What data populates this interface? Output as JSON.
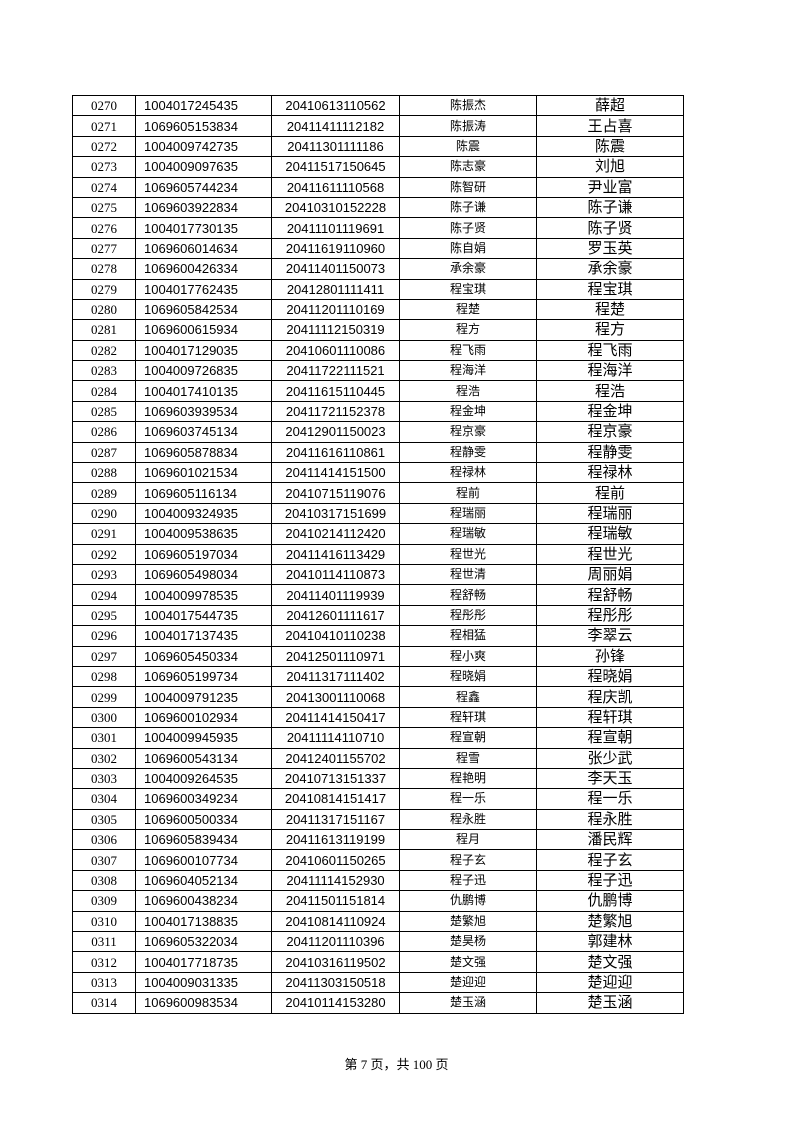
{
  "table": {
    "rows": [
      [
        "0270",
        "1004017245435",
        "20410613110562",
        "陈振杰",
        "薛超"
      ],
      [
        "0271",
        "1069605153834",
        "20411411112182",
        "陈振涛",
        "王占喜"
      ],
      [
        "0272",
        "1004009742735",
        "20411301111186",
        "陈震",
        "陈震"
      ],
      [
        "0273",
        "1004009097635",
        "20411517150645",
        "陈志豪",
        "刘旭"
      ],
      [
        "0274",
        "1069605744234",
        "20411611110568",
        "陈智研",
        "尹业富"
      ],
      [
        "0275",
        "1069603922834",
        "20410310152228",
        "陈子谦",
        "陈子谦"
      ],
      [
        "0276",
        "1004017730135",
        "20411101119691",
        "陈子贤",
        "陈子贤"
      ],
      [
        "0277",
        "1069606014634",
        "20411619110960",
        "陈自娟",
        "罗玉英"
      ],
      [
        "0278",
        "1069600426334",
        "20411401150073",
        "承余豪",
        "承余豪"
      ],
      [
        "0279",
        "1004017762435",
        "20412801111411",
        "程宝琪",
        "程宝琪"
      ],
      [
        "0280",
        "1069605842534",
        "20411201110169",
        "程楚",
        "程楚"
      ],
      [
        "0281",
        "1069600615934",
        "20411112150319",
        "程方",
        "程方"
      ],
      [
        "0282",
        "1004017129035",
        "20410601110086",
        "程飞雨",
        "程飞雨"
      ],
      [
        "0283",
        "1004009726835",
        "20411722111521",
        "程海洋",
        "程海洋"
      ],
      [
        "0284",
        "1004017410135",
        "20411615110445",
        "程浩",
        "程浩"
      ],
      [
        "0285",
        "1069603939534",
        "20411721152378",
        "程金坤",
        "程金坤"
      ],
      [
        "0286",
        "1069603745134",
        "20412901150023",
        "程京豪",
        "程京豪"
      ],
      [
        "0287",
        "1069605878834",
        "20411616110861",
        "程静雯",
        "程静雯"
      ],
      [
        "0288",
        "1069601021534",
        "20411414151500",
        "程禄林",
        "程禄林"
      ],
      [
        "0289",
        "1069605116134",
        "20410715119076",
        "程前",
        "程前"
      ],
      [
        "0290",
        "1004009324935",
        "20410317151699",
        "程瑞丽",
        "程瑞丽"
      ],
      [
        "0291",
        "1004009538635",
        "20410214112420",
        "程瑞敏",
        "程瑞敏"
      ],
      [
        "0292",
        "1069605197034",
        "20411416113429",
        "程世光",
        "程世光"
      ],
      [
        "0293",
        "1069605498034",
        "20410114110873",
        "程世清",
        "周丽娟"
      ],
      [
        "0294",
        "1004009978535",
        "20411401119939",
        "程舒畅",
        "程舒畅"
      ],
      [
        "0295",
        "1004017544735",
        "20412601111617",
        "程彤彤",
        "程彤彤"
      ],
      [
        "0296",
        "1004017137435",
        "20410410110238",
        "程相猛",
        "李翠云"
      ],
      [
        "0297",
        "1069605450334",
        "20412501110971",
        "程小爽",
        "孙锋"
      ],
      [
        "0298",
        "1069605199734",
        "20411317111402",
        "程晓娟",
        "程晓娟"
      ],
      [
        "0299",
        "1004009791235",
        "20413001110068",
        "程鑫",
        "程庆凯"
      ],
      [
        "0300",
        "1069600102934",
        "20411414150417",
        "程轩琪",
        "程轩琪"
      ],
      [
        "0301",
        "1004009945935",
        "20411114110710",
        "程宣朝",
        "程宣朝"
      ],
      [
        "0302",
        "1069600543134",
        "20412401155702",
        "程雪",
        "张少武"
      ],
      [
        "0303",
        "1004009264535",
        "20410713151337",
        "程艳明",
        "李天玉"
      ],
      [
        "0304",
        "1069600349234",
        "20410814151417",
        "程一乐",
        "程一乐"
      ],
      [
        "0305",
        "1069600500334",
        "20411317151167",
        "程永胜",
        "程永胜"
      ],
      [
        "0306",
        "1069605839434",
        "20411613119199",
        "程月",
        "潘民辉"
      ],
      [
        "0307",
        "1069600107734",
        "20410601150265",
        "程子玄",
        "程子玄"
      ],
      [
        "0308",
        "1069604052134",
        "20411114152930",
        "程子迅",
        "程子迅"
      ],
      [
        "0309",
        "1069600438234",
        "20411501151814",
        "仇鹏博",
        "仇鹏博"
      ],
      [
        "0310",
        "1004017138835",
        "20410814110924",
        "楚繁旭",
        "楚繁旭"
      ],
      [
        "0311",
        "1069605322034",
        "20411201110396",
        "楚昊杨",
        "郭建林"
      ],
      [
        "0312",
        "1004017718735",
        "20410316119502",
        "楚文强",
        "楚文强"
      ],
      [
        "0313",
        "1004009031335",
        "20411303150518",
        "楚迎迎",
        "楚迎迎"
      ],
      [
        "0314",
        "1069600983534",
        "20410114153280",
        "楚玉涵",
        "楚玉涵"
      ]
    ]
  },
  "footer": "第 7 页，共 100 页"
}
